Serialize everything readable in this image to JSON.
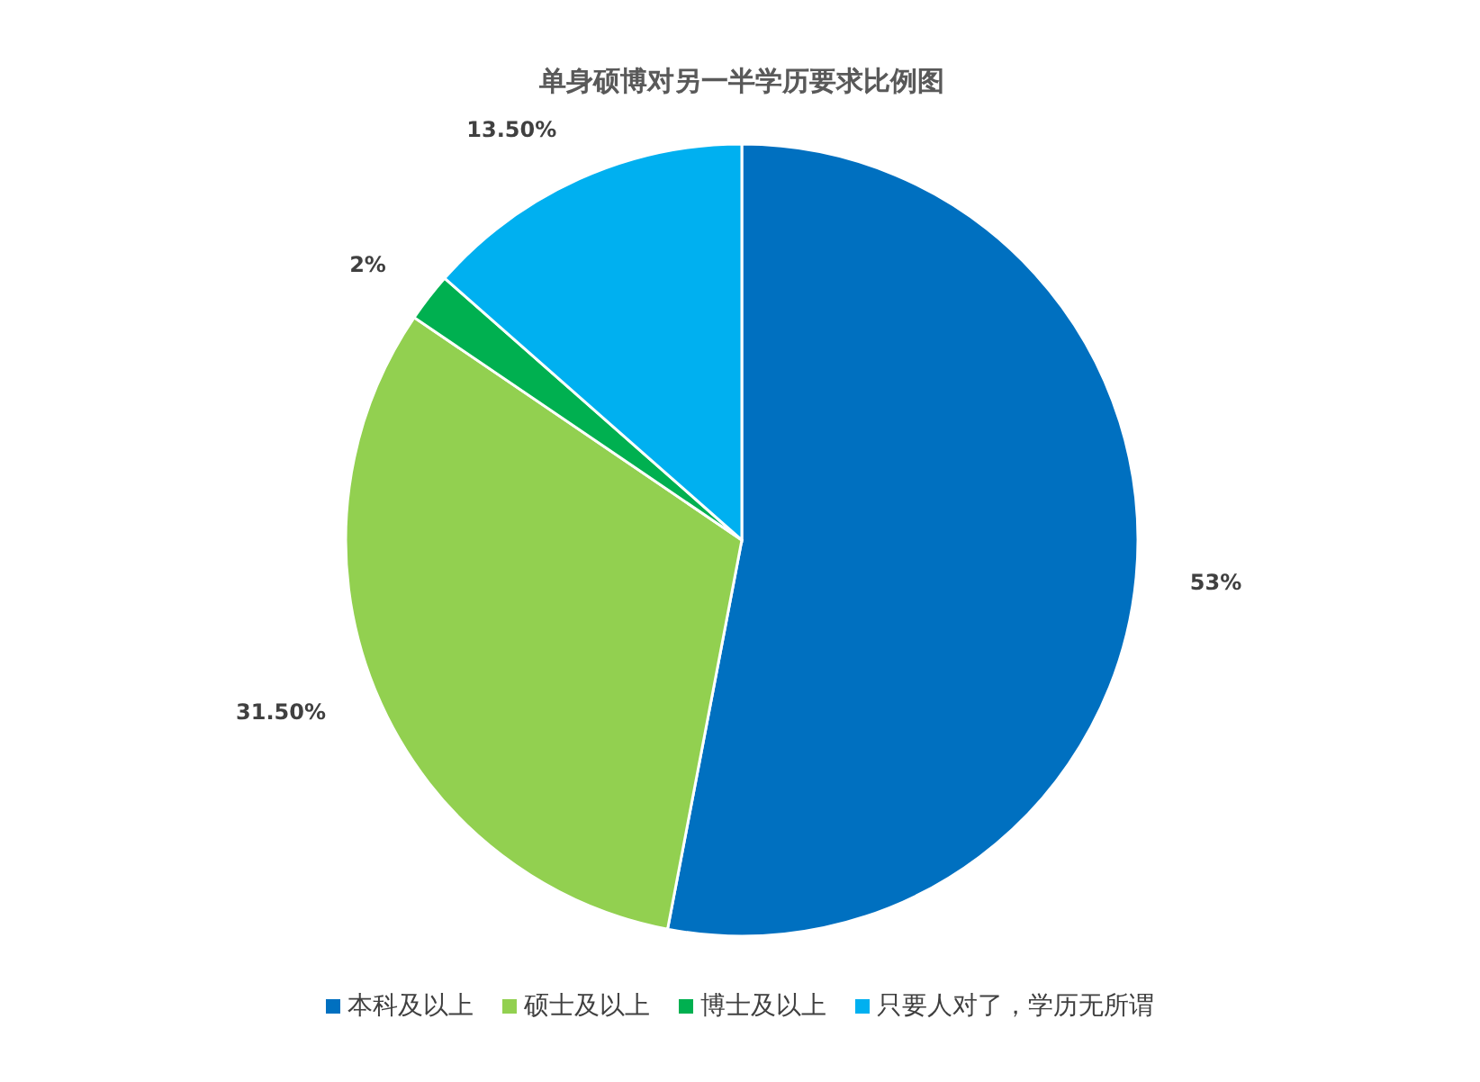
{
  "chart_data": {
    "type": "pie",
    "title": "单身硕博对另一半学历要求比例图",
    "categories": [
      "本科及以上",
      "硕士及以上",
      "博士及以上",
      "只要人对了，学历无所谓"
    ],
    "values": [
      53,
      31.5,
      2,
      13.5
    ],
    "colors": [
      "#0070c0",
      "#92d050",
      "#00b050",
      "#00b0f0"
    ],
    "value_labels": [
      "53%",
      "31.50%",
      "2%",
      "13.50%"
    ],
    "legend": "bottom"
  }
}
